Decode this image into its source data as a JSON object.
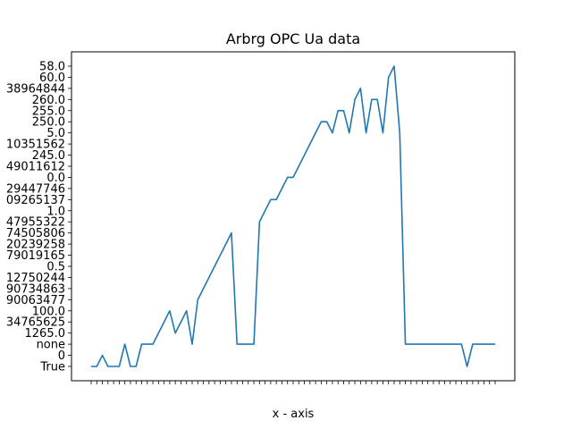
{
  "chart_data": {
    "type": "line",
    "title": "Arbrg OPC Ua data",
    "xlabel": "x - axis",
    "ylabel": "",
    "grid": false,
    "y_ticks": [
      "True",
      "0",
      "none",
      "1265.0",
      "34765625",
      "100.0",
      "90063477",
      "90734863",
      "12750244",
      "0.5",
      "79019165",
      "20239258",
      "74505806",
      "47955322",
      "1.0",
      "09265137",
      "29447746",
      "0.0",
      "49011612",
      "245.0",
      "10351562",
      "5.0",
      "250.0",
      "255.0",
      "260.0",
      "38964844",
      "60.0",
      "58.0"
    ],
    "y_tick_values": [
      0,
      1,
      2,
      3,
      4,
      5,
      6,
      7,
      8,
      9,
      10,
      11,
      12,
      13,
      14,
      15,
      16,
      17,
      18,
      19,
      20,
      21,
      22,
      23,
      24,
      25,
      26,
      27
    ],
    "series": [
      {
        "color": "#1f77b4",
        "values": [
          0,
          0,
          1,
          0,
          0,
          0,
          2,
          0,
          0,
          2,
          2,
          2,
          3,
          4,
          5,
          3,
          4,
          5,
          2,
          6,
          7,
          8,
          9,
          10,
          11,
          12,
          2,
          2,
          2,
          2,
          13,
          14,
          15,
          15,
          16,
          17,
          17,
          18,
          19,
          20,
          21,
          22,
          22,
          21,
          23,
          23,
          21,
          24,
          25,
          21,
          24,
          24,
          21,
          26,
          27,
          21,
          2,
          2,
          2,
          2,
          2,
          2,
          2,
          2,
          2,
          2,
          2,
          0,
          2,
          2,
          2,
          2,
          2
        ]
      }
    ]
  }
}
